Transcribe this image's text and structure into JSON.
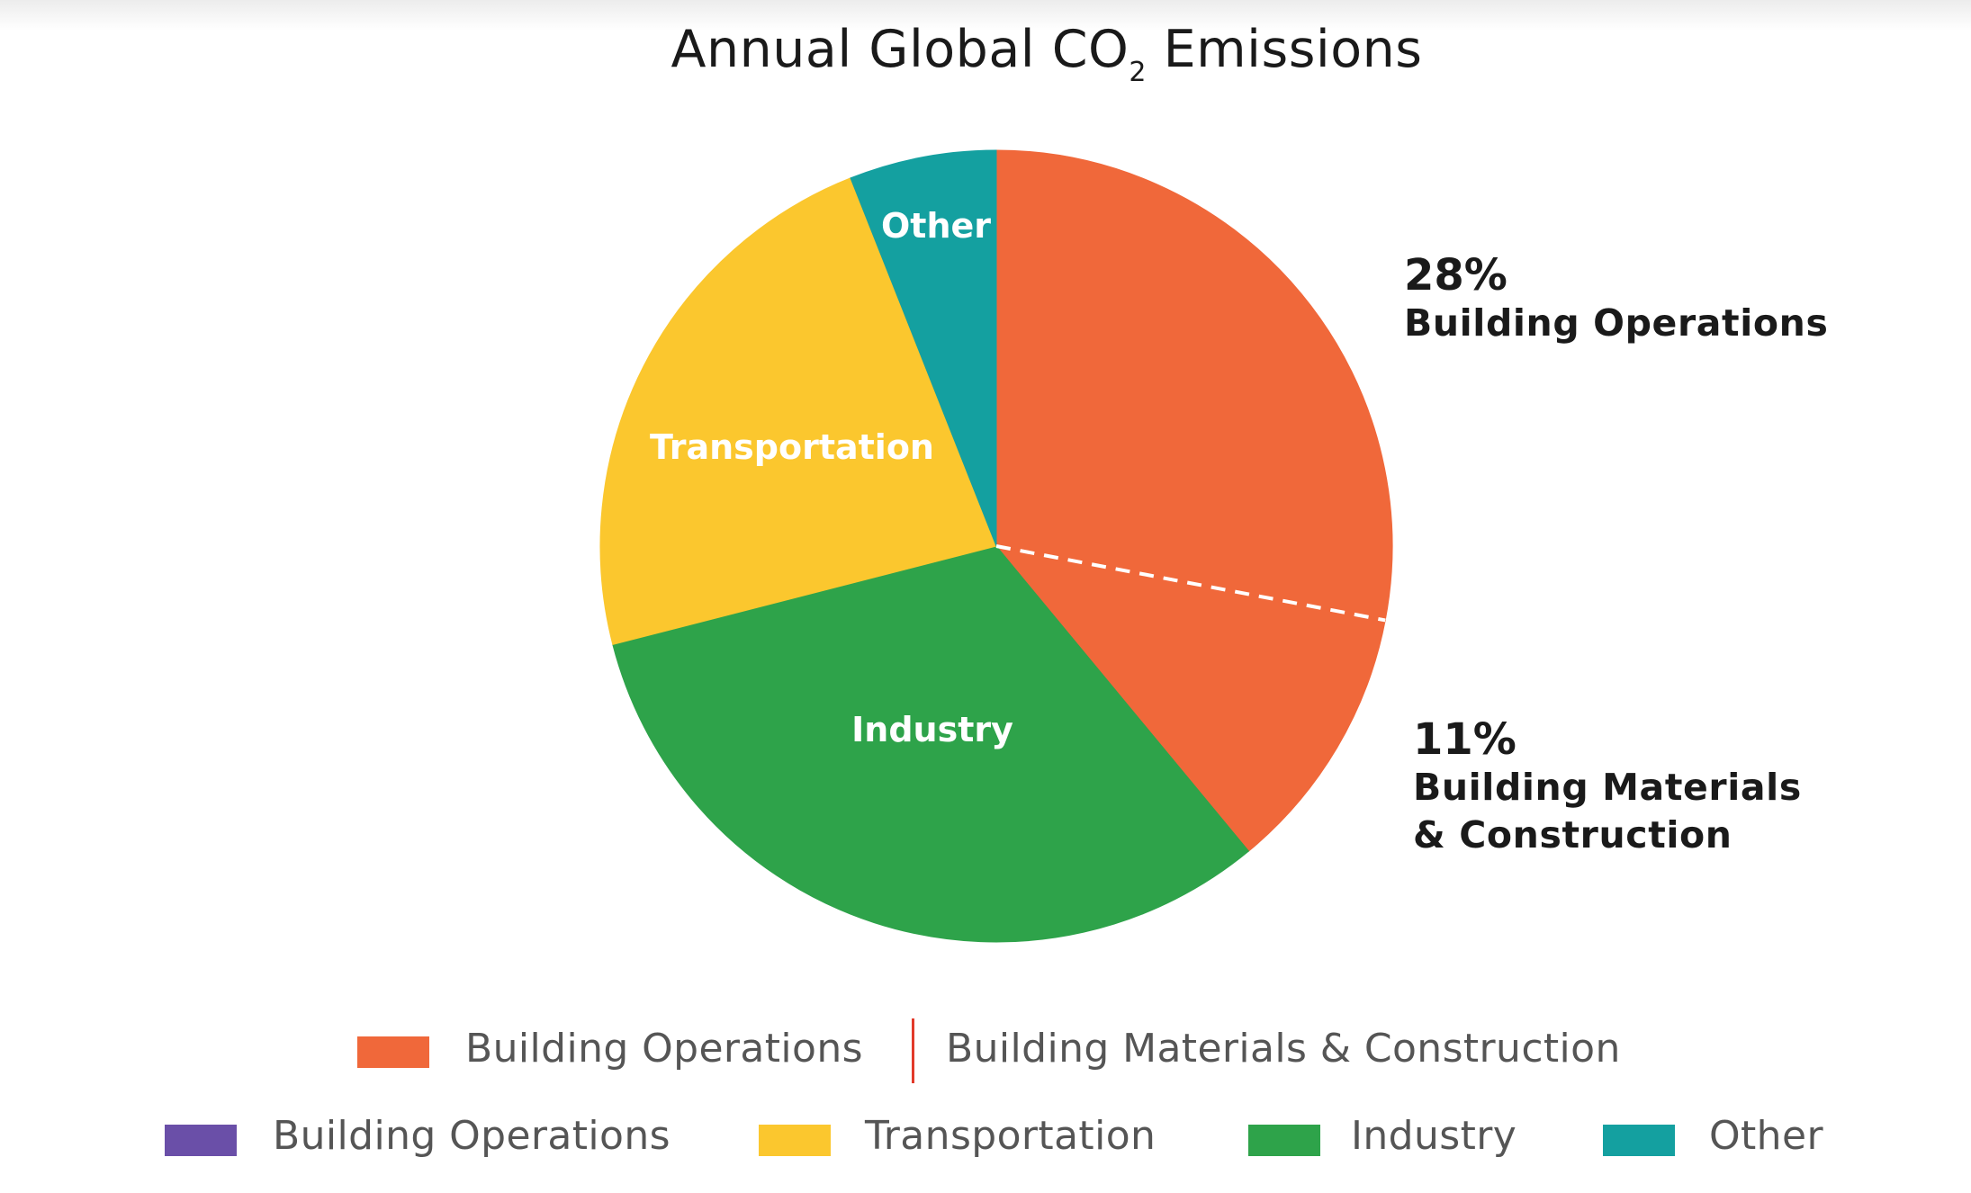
{
  "chart_data": {
    "type": "pie",
    "title": "Annual Global CO",
    "title_subscript": "2",
    "title_suffix": " Emissions",
    "slices": [
      {
        "label": "Building Operations",
        "value": 28,
        "color": "#F0683A"
      },
      {
        "label": "Building Materials & Construction",
        "value": 11,
        "color": "#F0683A"
      },
      {
        "label": "Industry",
        "value": 32,
        "color": "#2EA34A"
      },
      {
        "label": "Transportation",
        "value": 23,
        "color": "#FBC72E"
      },
      {
        "label": "Other",
        "value": 6,
        "color": "#14A0A0"
      }
    ],
    "slice_labels": {
      "industry": "Industry",
      "transportation": "Transportation",
      "other": "Other"
    },
    "callouts": [
      {
        "percent": "28%",
        "lines": [
          "Building Operations"
        ]
      },
      {
        "percent": "11%",
        "lines": [
          "Building Materials",
          "& Construction"
        ]
      }
    ],
    "separator": "dashed white line between Building Operations and Building Materials & Construction",
    "legend": {
      "row1": [
        {
          "label": "Building Operations",
          "color": "#F0683A"
        },
        {
          "label": "Building Materials & Construction",
          "color": "#F0683A"
        }
      ],
      "row2": [
        {
          "label": "Building Operations",
          "color": "#6A4FA8"
        },
        {
          "label": "Transportation",
          "color": "#FBC72E"
        },
        {
          "label": "Industry",
          "color": "#2EA34A"
        },
        {
          "label": "Other",
          "color": "#14A0A0"
        }
      ],
      "placement": "bottom"
    }
  }
}
